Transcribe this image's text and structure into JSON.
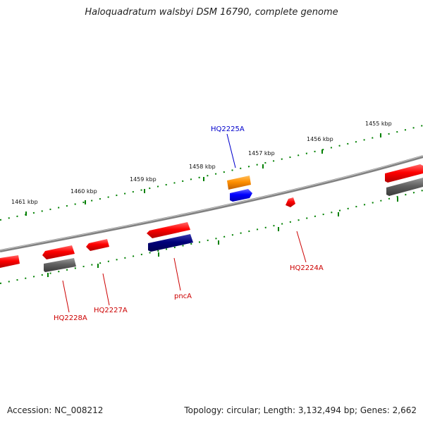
{
  "title": "Haloquadratum walsbyi DSM 16790, complete genome",
  "footer": {
    "accession": "Accession: NC_008212",
    "topology": "Topology: circular",
    "length": "Length: 3,132,494 bp",
    "genes": "Genes: 2,662"
  },
  "scale": {
    "tick_labels": [
      "1461 kbp",
      "1460 kbp",
      "1459 kbp",
      "1458 kbp",
      "1457 kbp",
      "1456 kbp",
      "1455 kbp"
    ]
  },
  "genes": [
    {
      "name": "HQ2225A",
      "color": "#0000cc"
    },
    {
      "name": "HQ2224A",
      "color": "#cc0000"
    },
    {
      "name": "pncA",
      "color": "#cc0000"
    },
    {
      "name": "HQ2227A",
      "color": "#cc0000"
    },
    {
      "name": "HQ2228A",
      "color": "#cc0000"
    }
  ],
  "colors": {
    "cds": "#ff0000",
    "cds_alt": "#ff8c00",
    "feature_blue": "#0000ff",
    "feature_navy": "#00007a",
    "feature_gray": "#606060",
    "backbone": "#808080",
    "tick": "#008000"
  }
}
